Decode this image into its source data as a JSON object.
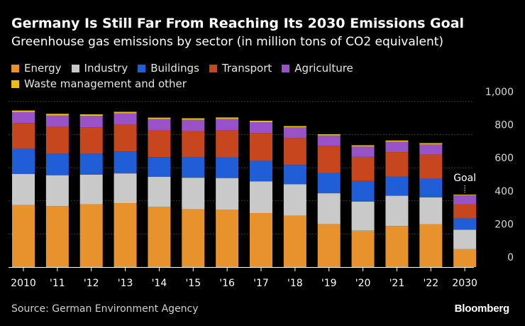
{
  "header": {
    "title": "Germany Is Still Far From Reaching Its 2030 Emissions Goal",
    "subtitle": "Greenhouse gas emissions by sector (in million tons of CO2 equivalent)"
  },
  "footer": {
    "source": "Source: German Environment Agency",
    "brand": "Bloomberg"
  },
  "colors": {
    "Energy": "#e8922e",
    "Industry": "#c9c9c9",
    "Buildings": "#1f5ed6",
    "Transport": "#c6461d",
    "Agriculture": "#9a52c9",
    "Waste management and other": "#e5c000"
  },
  "chart_data": {
    "type": "bar",
    "stacked": true,
    "title": "Germany Is Still Far From Reaching Its 2030 Emissions Goal",
    "subtitle": "Greenhouse gas emissions by sector (in million tons of CO2 equivalent)",
    "categories": [
      "2010",
      "'11",
      "'12",
      "'13",
      "'14",
      "'15",
      "'16",
      "'17",
      "'18",
      "'19",
      "'20",
      "'21",
      "'22",
      "2030"
    ],
    "series": [
      {
        "name": "Energy",
        "values": [
          375,
          368,
          380,
          386,
          365,
          350,
          346,
          326,
          310,
          260,
          220,
          248,
          258,
          108
        ]
      },
      {
        "name": "Industry",
        "values": [
          188,
          187,
          178,
          180,
          181,
          190,
          192,
          192,
          190,
          186,
          176,
          183,
          163,
          118
        ]
      },
      {
        "name": "Buildings",
        "values": [
          150,
          130,
          127,
          133,
          118,
          122,
          125,
          124,
          117,
          123,
          124,
          116,
          112,
          67
        ]
      },
      {
        "name": "Transport",
        "values": [
          157,
          163,
          160,
          160,
          162,
          160,
          165,
          168,
          163,
          164,
          146,
          148,
          147,
          85
        ]
      },
      {
        "name": "Agriculture",
        "values": [
          66,
          68,
          68,
          70,
          68,
          68,
          67,
          65,
          64,
          62,
          62,
          62,
          61,
          56
        ]
      },
      {
        "name": "Waste management and other",
        "values": [
          10,
          10,
          10,
          9,
          9,
          9,
          9,
          9,
          8,
          8,
          8,
          8,
          8,
          4
        ]
      }
    ],
    "ylim": [
      0,
      1000
    ],
    "yticks": [
      "0",
      "200",
      "400",
      "600",
      "800",
      "1,000"
    ],
    "annotations": [
      {
        "category": "2030",
        "text": "Goal"
      }
    ],
    "grid": true,
    "legend": "top-left"
  }
}
